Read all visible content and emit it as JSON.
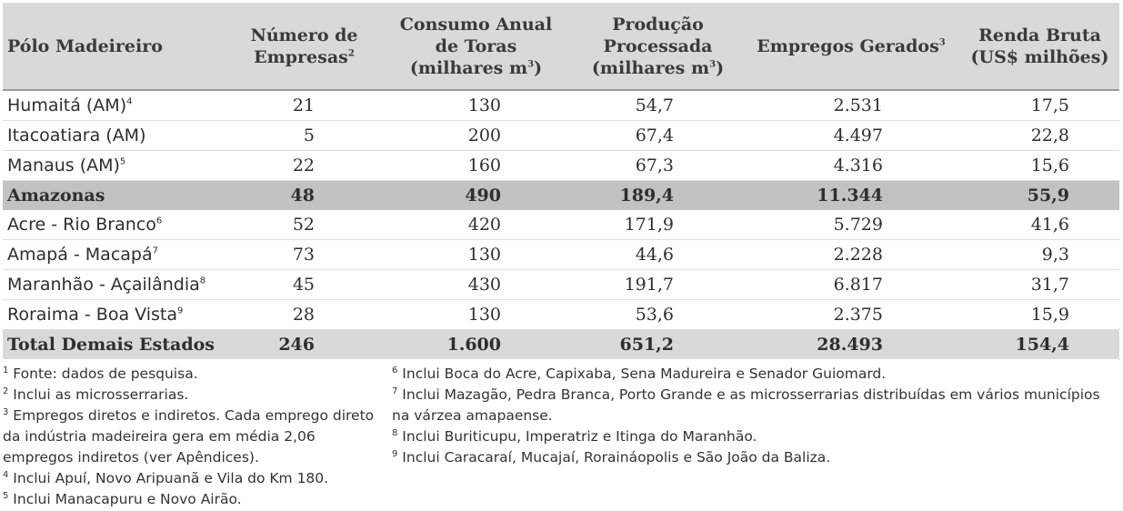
{
  "table": {
    "headers": [
      {
        "text": "Pólo Madeireiro",
        "sup": ""
      },
      {
        "text": "Número de Empresas",
        "sup": "2"
      },
      {
        "text": "Consumo Anual de Toras (milhares m",
        "sup": "3",
        "tail": ")"
      },
      {
        "text": "Produção Processada (milhares m",
        "sup": "3",
        "tail": ")"
      },
      {
        "text": "Empregos Gerados",
        "sup": "3"
      },
      {
        "text": "Renda Bruta (US$ milhões)",
        "sup": ""
      }
    ],
    "header_lines": {
      "h0": [
        "Pólo Madeireiro"
      ],
      "h1": [
        "Número de",
        "Empresas"
      ],
      "h2": [
        "Consumo Anual",
        "de Toras",
        "(milhares m"
      ],
      "h3": [
        "Produção",
        "Processada",
        "(milhares m"
      ],
      "h4": [
        "Empregos Gerados"
      ],
      "h5": [
        "Renda Bruta",
        "(US$ milhões)"
      ]
    },
    "rows": [
      {
        "name": "Humaitá (AM)",
        "sup": "4",
        "empresas": "21",
        "consumo": "130",
        "producao": "54,7",
        "empregos": "2.531",
        "renda": "17,5"
      },
      {
        "name": "Itacoatiara (AM)",
        "sup": "",
        "empresas": "5",
        "consumo": "200",
        "producao": "67,4",
        "empregos": "4.497",
        "renda": "22,8"
      },
      {
        "name": "Manaus (AM)",
        "sup": "5",
        "empresas": "22",
        "consumo": "160",
        "producao": "67,3",
        "empregos": "4.316",
        "renda": "15,6"
      },
      {
        "name": "Amazonas",
        "sup": "",
        "empresas": "48",
        "consumo": "490",
        "producao": "189,4",
        "empregos": "11.344",
        "renda": "55,9"
      },
      {
        "name": "Acre - Rio Branco",
        "sup": "6",
        "empresas": "52",
        "consumo": "420",
        "producao": "171,9",
        "empregos": "5.729",
        "renda": "41,6"
      },
      {
        "name": "Amapá - Macapá",
        "sup": "7",
        "empresas": "73",
        "consumo": "130",
        "producao": "44,6",
        "empregos": "2.228",
        "renda": "9,3"
      },
      {
        "name": "Maranhão - Açailândia",
        "sup": "8",
        "empresas": "45",
        "consumo": "430",
        "producao": "191,7",
        "empregos": "6.817",
        "renda": "31,7"
      },
      {
        "name": "Roraima - Boa Vista",
        "sup": "9",
        "empresas": "28",
        "consumo": "130",
        "producao": "53,6",
        "empregos": "2.375",
        "renda": "15,9"
      },
      {
        "name": "Total  Demais Estados",
        "sup": "",
        "empresas": "246",
        "consumo": "1.600",
        "producao": "651,2",
        "empregos": "28.493",
        "renda": "154,4"
      }
    ]
  },
  "footnotes_left": [
    {
      "n": "1",
      "text": " Fonte: dados de pesquisa."
    },
    {
      "n": "2",
      "text": " Inclui as microsserrarias."
    },
    {
      "n": "3",
      "text": " Empregos diretos e indiretos. Cada emprego direto da indústria madeireira gera em média 2,06 empregos indiretos (ver Apêndices)."
    },
    {
      "n": "4",
      "text": " Inclui Apuí, Novo Aripuanã e Vila do Km 180."
    },
    {
      "n": "5",
      "text": " Inclui Manacapuru e Novo Airão."
    }
  ],
  "footnotes_right": [
    {
      "n": "6",
      "text": " Inclui Boca do Acre, Capixaba, Sena Madureira e Senador Guiomard."
    },
    {
      "n": "7",
      "text": " Inclui Mazagão, Pedra Branca, Porto Grande e as microsserrarias distribuídas em vários municípios na várzea amapaense."
    },
    {
      "n": "8",
      "text": " Inclui Buriticupu, Imperatriz e Itinga do Maranhão."
    },
    {
      "n": "9",
      "text": " Inclui Caracaraí, Mucajaí, Roraináopolis e São João da Baliza."
    }
  ]
}
